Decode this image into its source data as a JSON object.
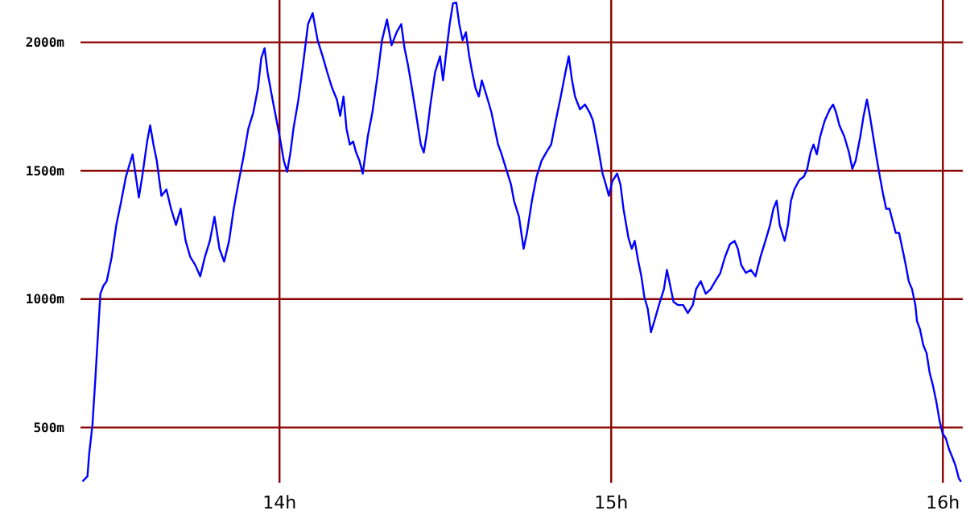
{
  "chart_data": {
    "type": "line",
    "x": [
      13.406,
      13.421,
      13.426,
      13.436,
      13.445,
      13.455,
      13.46,
      13.469,
      13.479,
      13.494,
      13.508,
      13.523,
      13.537,
      13.547,
      13.557,
      13.567,
      13.576,
      13.586,
      13.601,
      13.61,
      13.62,
      13.63,
      13.644,
      13.659,
      13.673,
      13.688,
      13.702,
      13.717,
      13.731,
      13.746,
      13.761,
      13.775,
      13.79,
      13.804,
      13.819,
      13.833,
      13.848,
      13.862,
      13.877,
      13.892,
      13.906,
      13.921,
      13.935,
      13.945,
      13.955,
      13.964,
      13.979,
      13.994,
      14.003,
      14.013,
      14.023,
      14.033,
      14.042,
      14.057,
      14.071,
      14.086,
      14.1,
      14.115,
      14.13,
      14.144,
      14.159,
      14.173,
      14.183,
      14.193,
      14.202,
      14.212,
      14.222,
      14.231,
      14.241,
      14.251,
      14.266,
      14.28,
      14.295,
      14.309,
      14.324,
      14.338,
      14.353,
      14.367,
      14.377,
      14.387,
      14.397,
      14.411,
      14.426,
      14.435,
      14.445,
      14.455,
      14.469,
      14.484,
      14.493,
      14.503,
      14.513,
      14.523,
      14.533,
      14.542,
      14.552,
      14.562,
      14.572,
      14.581,
      14.591,
      14.601,
      14.61,
      14.625,
      14.639,
      14.649,
      14.659,
      14.668,
      14.683,
      14.698,
      14.707,
      14.722,
      14.736,
      14.746,
      14.761,
      14.775,
      14.79,
      14.804,
      14.819,
      14.833,
      14.848,
      14.862,
      14.872,
      14.882,
      14.891,
      14.906,
      14.921,
      14.935,
      14.945,
      14.959,
      14.974,
      14.984,
      14.993,
      15.003,
      15.018,
      15.028,
      15.037,
      15.052,
      15.062,
      15.071,
      15.081,
      15.091,
      15.1,
      15.11,
      15.12,
      15.13,
      15.144,
      15.159,
      15.168,
      15.178,
      15.188,
      15.202,
      15.217,
      15.231,
      15.246,
      15.256,
      15.27,
      15.285,
      15.3,
      15.314,
      15.329,
      15.343,
      15.358,
      15.372,
      15.382,
      15.392,
      15.406,
      15.421,
      15.435,
      15.45,
      15.465,
      15.479,
      15.489,
      15.499,
      15.508,
      15.523,
      15.533,
      15.542,
      15.552,
      15.567,
      15.581,
      15.591,
      15.601,
      15.61,
      15.62,
      15.63,
      15.644,
      15.659,
      15.669,
      15.678,
      15.688,
      15.703,
      15.717,
      15.727,
      15.737,
      15.751,
      15.761,
      15.771,
      15.78,
      15.79,
      15.8,
      15.81,
      15.819,
      15.829,
      15.839,
      15.849,
      15.858,
      15.868,
      15.878,
      15.888,
      15.897,
      15.907,
      15.917,
      15.922,
      15.931,
      15.941,
      15.951,
      15.96,
      15.97,
      15.98,
      15.99,
      15.999,
      16.009,
      16.019,
      16.029,
      16.038,
      16.048,
      16.055
    ],
    "series": [
      {
        "color": "#0000ff",
        "values": [
          290,
          310,
          395,
          510,
          695,
          914,
          1021,
          1052,
          1070,
          1164,
          1289,
          1383,
          1477,
          1521,
          1564,
          1477,
          1396,
          1477,
          1614,
          1677,
          1602,
          1539,
          1402,
          1427,
          1352,
          1289,
          1352,
          1227,
          1164,
          1133,
          1089,
          1164,
          1227,
          1321,
          1196,
          1146,
          1227,
          1352,
          1458,
          1558,
          1664,
          1727,
          1821,
          1939,
          1977,
          1883,
          1777,
          1677,
          1614,
          1539,
          1496,
          1571,
          1664,
          1777,
          1914,
          2071,
          2114,
          2008,
          1946,
          1883,
          1821,
          1777,
          1714,
          1789,
          1664,
          1602,
          1614,
          1571,
          1539,
          1489,
          1633,
          1727,
          1864,
          2008,
          2089,
          1989,
          2039,
          2071,
          1977,
          1914,
          1839,
          1727,
          1602,
          1571,
          1652,
          1758,
          1883,
          1946,
          1852,
          1964,
          2071,
          2152,
          2155,
          2071,
          2008,
          2039,
          1946,
          1883,
          1821,
          1789,
          1852,
          1789,
          1727,
          1664,
          1602,
          1571,
          1508,
          1446,
          1383,
          1321,
          1196,
          1258,
          1383,
          1477,
          1539,
          1571,
          1602,
          1696,
          1789,
          1883,
          1946,
          1852,
          1789,
          1739,
          1758,
          1727,
          1696,
          1602,
          1489,
          1446,
          1402,
          1458,
          1489,
          1446,
          1352,
          1239,
          1196,
          1227,
          1152,
          1089,
          1008,
          964,
          871,
          914,
          977,
          1039,
          1114,
          1052,
          989,
          977,
          977,
          946,
          977,
          1039,
          1070,
          1021,
          1039,
          1070,
          1102,
          1164,
          1214,
          1227,
          1196,
          1133,
          1102,
          1114,
          1089,
          1164,
          1227,
          1289,
          1352,
          1383,
          1289,
          1227,
          1289,
          1383,
          1427,
          1464,
          1477,
          1508,
          1571,
          1602,
          1564,
          1633,
          1696,
          1739,
          1758,
          1727,
          1677,
          1633,
          1571,
          1508,
          1539,
          1633,
          1714,
          1777,
          1714,
          1633,
          1552,
          1477,
          1414,
          1352,
          1352,
          1302,
          1258,
          1258,
          1196,
          1133,
          1070,
          1039,
          977,
          914,
          883,
          821,
          789,
          714,
          664,
          602,
          527,
          477,
          458,
          414,
          383,
          352,
          302,
          289
        ]
      }
    ],
    "xlim": [
      13.4,
      16.06
    ],
    "ylim": [
      285,
      2165
    ],
    "xticks": [
      {
        "value": 14,
        "label": "14h"
      },
      {
        "value": 15,
        "label": "15h"
      },
      {
        "value": 16,
        "label": "16h"
      }
    ],
    "yticks": [
      {
        "value": 500,
        "label": "500m"
      },
      {
        "value": 1000,
        "label": "1000m"
      },
      {
        "value": 1500,
        "label": "1500m"
      },
      {
        "value": 2000,
        "label": "2000m"
      }
    ],
    "grid": true,
    "marker": "none",
    "line_style": "solid"
  }
}
